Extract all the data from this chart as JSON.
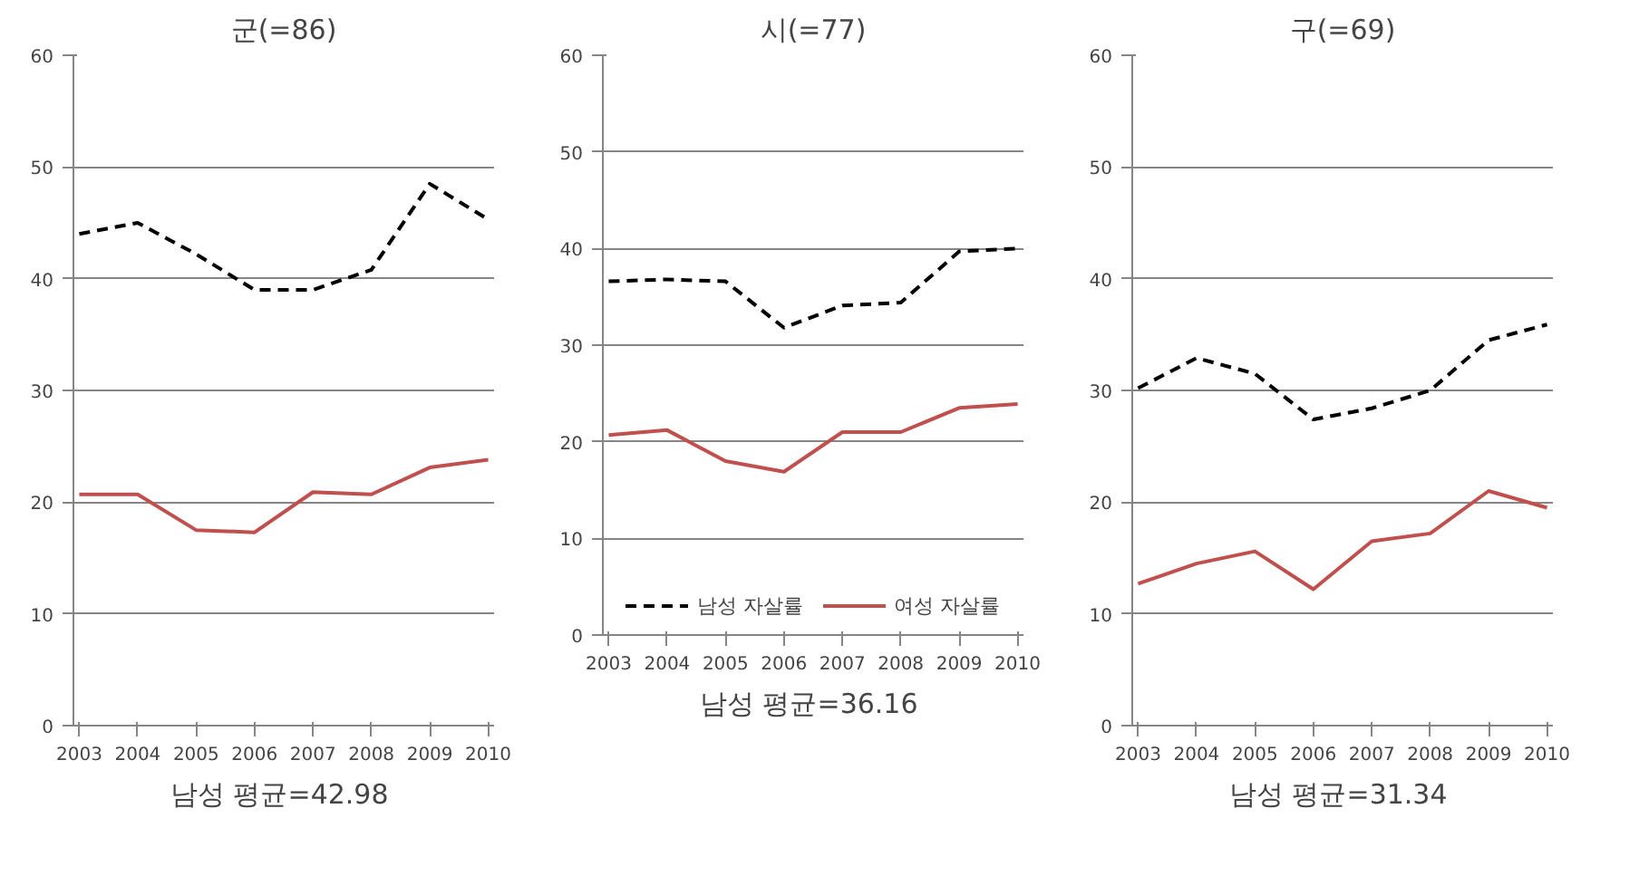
{
  "chart_data": [
    {
      "type": "line",
      "title": "군(=86)",
      "categories": [
        "2003",
        "2004",
        "2005",
        "2006",
        "2007",
        "2008",
        "2009",
        "2010"
      ],
      "ylim": [
        0,
        60
      ],
      "yticks": [
        0,
        10,
        20,
        30,
        40,
        50,
        60
      ],
      "grid": "y",
      "legend": false,
      "annotations": [
        "남성  평균=42.98"
      ],
      "series": [
        {
          "color": "#000000",
          "line_style": "dashed",
          "values": [
            44.0,
            45.0,
            42.2,
            39.0,
            39.0,
            40.8,
            48.5,
            45.3
          ]
        },
        {
          "color": "#c0504d",
          "line_style": "solid",
          "values": [
            20.7,
            20.7,
            17.5,
            17.3,
            20.9,
            20.7,
            23.1,
            23.8
          ]
        }
      ]
    },
    {
      "type": "line",
      "title": "시(=77)",
      "categories": [
        "2003",
        "2004",
        "2005",
        "2006",
        "2007",
        "2008",
        "2009",
        "2010"
      ],
      "ylim": [
        0,
        60
      ],
      "yticks": [
        0,
        10,
        20,
        30,
        40,
        50,
        60
      ],
      "grid": "y",
      "legend": "bottom",
      "annotations": [
        "남성  평균=36.16"
      ],
      "series": [
        {
          "name": "남성 자살률",
          "color": "#000000",
          "line_style": "dashed",
          "values": [
            36.6,
            36.8,
            36.6,
            31.8,
            34.1,
            34.4,
            39.7,
            40.0
          ]
        },
        {
          "name": "여성 자살률",
          "color": "#c0504d",
          "line_style": "solid",
          "values": [
            20.7,
            21.2,
            18.0,
            16.9,
            21.0,
            21.0,
            23.5,
            23.9
          ]
        }
      ]
    },
    {
      "type": "line",
      "title": "구(=69)",
      "categories": [
        "2003",
        "2004",
        "2005",
        "2006",
        "2007",
        "2008",
        "2009",
        "2010"
      ],
      "ylim": [
        0,
        60
      ],
      "yticks": [
        0,
        10,
        20,
        30,
        40,
        50,
        60
      ],
      "grid": "y",
      "legend": false,
      "annotations": [
        "남성  평균=31.34"
      ],
      "series": [
        {
          "color": "#000000",
          "line_style": "dashed",
          "values": [
            30.2,
            32.9,
            31.5,
            27.4,
            28.4,
            30.0,
            34.5,
            35.9
          ]
        },
        {
          "color": "#c0504d",
          "line_style": "solid",
          "values": [
            12.7,
            14.5,
            15.6,
            12.2,
            16.5,
            17.2,
            21.0,
            19.5
          ]
        }
      ]
    }
  ]
}
